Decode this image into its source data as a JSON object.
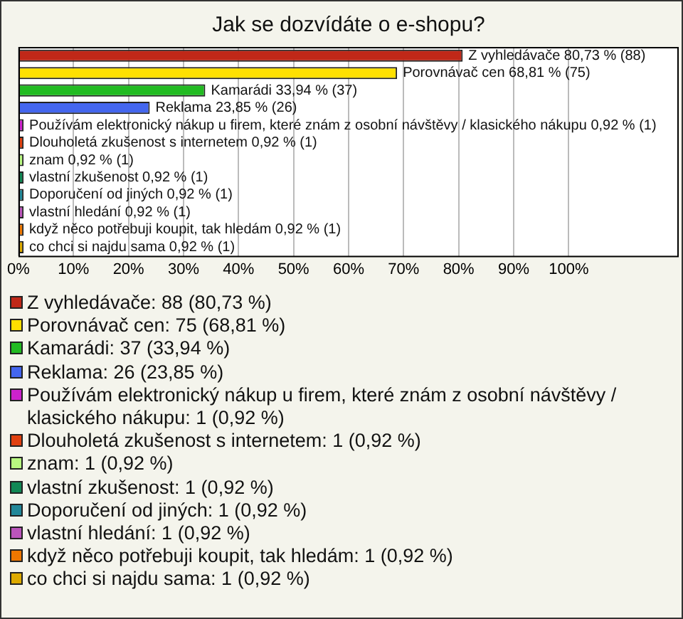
{
  "chart_data": {
    "type": "bar",
    "orientation": "horizontal",
    "title": "Jak se dozvídáte o e-shopu?",
    "categories": [
      null,
      null,
      null,
      null,
      null,
      null,
      null,
      null,
      null,
      null,
      null,
      null
    ],
    "values": [
      80.73,
      68.81,
      33.94,
      23.85,
      0.92,
      0.92,
      0.92,
      0.92,
      0.92,
      0.92,
      0.92,
      0.92
    ],
    "value_labels": [
      "Z vyhledávače 80,73 % (88)",
      "Porovnávač cen 68,81 % (75)",
      "Kamarádi 33,94 % (37)",
      "Reklama 23,85 % (26)",
      "Používám elektronický nákup u firem, které znám z osobní návštěvy / klasického nákupu 0,92 % (1)",
      "Dlouholetá zkušenost s internetem 0,92 % (1)",
      "znam 0,92 % (1)",
      "vlastní zkušenost 0,92 % (1)",
      "Doporučení od jiných 0,92 % (1)",
      "vlastní hledání 0,92 % (1)",
      "když něco potřebuji koupit, tak hledám 0,92 % (1)",
      "co chci si najdu sama 0,92 % (1)"
    ],
    "colors": [
      "#c02818",
      "#ffe000",
      "#22bb22",
      "#4466ee",
      "#cc22cc",
      "#e04010",
      "#b8f880",
      "#118855",
      "#228899",
      "#bb55bb",
      "#ee7700",
      "#ddaa00"
    ],
    "annotations": [
      "Z vyhledávače: 88 (80,73 %)",
      "Porovnávač cen: 75 (68,81 %)",
      "Kamarádi: 37 (33,94 %)",
      "Reklama: 26 (23,85 %)",
      "Používám elektronický nákup u firem, které znám z osobní návštěvy / klasického nákupu: 1 (0,92 %)",
      "Dlouholetá zkušenost s internetem: 1 (0,92 %)",
      "znam: 1 (0,92 %)",
      "vlastní zkušenost: 1 (0,92 %)",
      "Doporučení od jiných: 1 (0,92 %)",
      "vlastní hledání: 1 (0,92 %)",
      "když něco potřebuji koupit, tak hledám: 1 (0,92 %)",
      "co chci si najdu sama: 1 (0,92 %)"
    ],
    "xlim": [
      0,
      120
    ],
    "xticks": [
      {
        "value": 0,
        "label": "0%"
      },
      {
        "value": 10,
        "label": "10%"
      },
      {
        "value": 20,
        "label": "20%"
      },
      {
        "value": 30,
        "label": "30%"
      },
      {
        "value": 40,
        "label": "40%"
      },
      {
        "value": 50,
        "label": "50%"
      },
      {
        "value": 60,
        "label": "60%"
      },
      {
        "value": 70,
        "label": "70%"
      },
      {
        "value": 80,
        "label": "80%"
      },
      {
        "value": 90,
        "label": "90%"
      },
      {
        "value": 100,
        "label": "100%"
      }
    ],
    "tick_labels": "x",
    "grid": "x"
  }
}
